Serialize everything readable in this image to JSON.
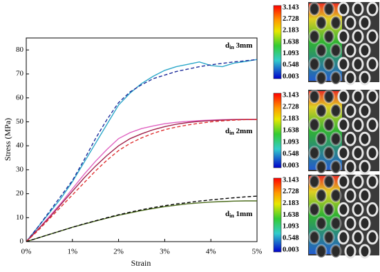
{
  "chart_data": {
    "type": "line",
    "x_label": "Strain",
    "y_label": "Stress (MPa)",
    "x": [
      0,
      0.25,
      0.5,
      0.75,
      1,
      1.25,
      1.5,
      1.75,
      2,
      2.25,
      2.5,
      2.75,
      3,
      3.25,
      3.5,
      3.75,
      4,
      4.25,
      4.5,
      4.75,
      5
    ],
    "xlim": [
      0,
      5
    ],
    "xticks": [
      {
        "value": 0,
        "label": "0%"
      },
      {
        "value": 1,
        "label": "1%"
      },
      {
        "value": 2,
        "label": "2%"
      },
      {
        "value": 3,
        "label": "3%"
      },
      {
        "value": 4,
        "label": "4%"
      },
      {
        "value": 5,
        "label": "5%"
      }
    ],
    "ylim": [
      0,
      85
    ],
    "yticks": [
      0,
      10,
      20,
      30,
      40,
      50,
      60,
      70,
      80
    ],
    "series": [
      {
        "color": "#2aa7c9",
        "line_style": "solid",
        "values": [
          0,
          6,
          12,
          18,
          25,
          33,
          41,
          49,
          57,
          62,
          66,
          69,
          71.5,
          73,
          74,
          75,
          73.5,
          73,
          74.5,
          75.2,
          76
        ]
      },
      {
        "color": "#1a2a9a",
        "line_style": "dashed",
        "values": [
          0,
          6,
          12.5,
          19,
          25.5,
          34,
          43,
          51,
          58,
          62.5,
          65.5,
          68,
          69.5,
          71,
          72,
          73,
          73.8,
          74.4,
          75,
          75.5,
          76
        ]
      },
      {
        "color": "#e060c0",
        "line_style": "solid",
        "values": [
          0,
          5,
          10.5,
          16,
          22,
          28,
          33.5,
          38.5,
          43,
          45.5,
          47.2,
          48.3,
          49.2,
          49.8,
          50.2,
          50.5,
          50.7,
          50.9,
          51,
          51,
          51
        ]
      },
      {
        "color": "#a0204a",
        "line_style": "solid",
        "values": [
          0,
          5,
          10,
          15.5,
          21,
          26.5,
          31.5,
          36,
          40,
          43,
          45,
          46.7,
          48,
          49,
          49.7,
          50.2,
          50.5,
          50.7,
          50.9,
          51,
          51
        ]
      },
      {
        "color": "#e03030",
        "line_style": "dashed",
        "values": [
          0,
          4.5,
          9.5,
          14.5,
          19.5,
          24.5,
          29.5,
          34,
          38,
          41,
          43.3,
          45.2,
          46.7,
          47.8,
          48.7,
          49.4,
          50,
          50.4,
          50.7,
          50.9,
          51
        ]
      },
      {
        "color": "#4a6a1a",
        "line_style": "solid",
        "values": [
          0,
          1.5,
          3,
          4.5,
          6,
          7.3,
          8.6,
          9.8,
          11,
          12,
          13,
          13.8,
          14.6,
          15.2,
          15.8,
          16.2,
          16.5,
          16.7,
          16.9,
          17,
          17
        ]
      },
      {
        "color": "#000000",
        "line_style": "dashed",
        "values": [
          0,
          1.5,
          3,
          4.5,
          6,
          7.4,
          8.7,
          10,
          11.2,
          12.3,
          13.3,
          14.2,
          15,
          15.7,
          16.3,
          16.9,
          17.4,
          17.9,
          18.3,
          18.7,
          19
        ]
      }
    ],
    "annotations": [
      {
        "text": "d",
        "sub": "in",
        "label": " 3mm"
      },
      {
        "text": "d",
        "sub": "in",
        "label": " 2mm"
      },
      {
        "text": "d",
        "sub": "in",
        "label": " 1mm"
      }
    ]
  },
  "panels": [
    {
      "labels": [
        "3.143",
        "2.728",
        "2.183",
        "1.638",
        "1.093",
        "0.548",
        "0.003"
      ]
    },
    {
      "labels": [
        "3.143",
        "2.728",
        "2.183",
        "1.638",
        "1.093",
        "0.548",
        "0.003"
      ]
    },
    {
      "labels": [
        "3.143",
        "2.728",
        "2.183",
        "1.638",
        "1.093",
        "0.548",
        "0.003"
      ]
    }
  ]
}
